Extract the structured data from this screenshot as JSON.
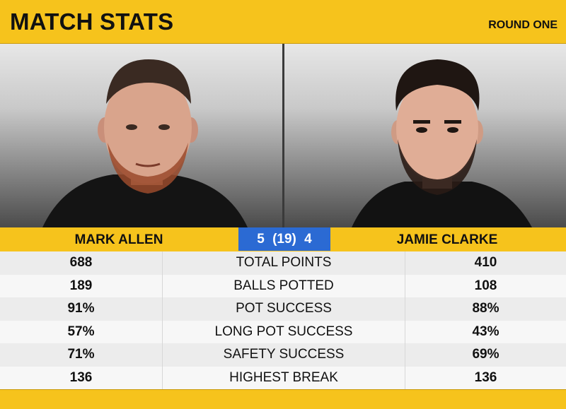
{
  "header": {
    "title": "MATCH STATS",
    "round": "ROUND ONE"
  },
  "players": {
    "left": {
      "name": "MARK ALLEN"
    },
    "right": {
      "name": "JAMIE CLARKE"
    }
  },
  "score": "5 (19) 4",
  "stats": [
    {
      "left": "688",
      "label": "TOTAL POINTS",
      "right": "410"
    },
    {
      "left": "189",
      "label": "BALLS POTTED",
      "right": "108"
    },
    {
      "left": "91%",
      "label": "POT SUCCESS",
      "right": "88%"
    },
    {
      "left": "57%",
      "label": "LONG POT SUCCESS",
      "right": "43%"
    },
    {
      "left": "71%",
      "label": "SAFETY SUCCESS",
      "right": "69%"
    },
    {
      "left": "136",
      "label": "HIGHEST BREAK",
      "right": "136"
    }
  ],
  "colors": {
    "accent": "#f6c31c",
    "score_bg": "#2b6ad3"
  }
}
